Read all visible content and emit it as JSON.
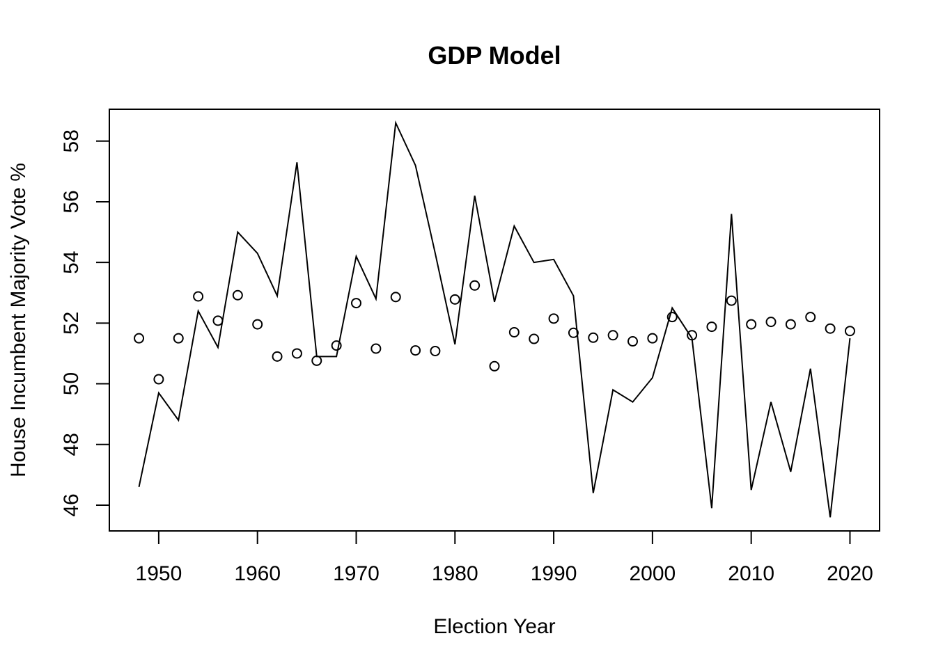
{
  "chart_data": {
    "type": "line",
    "title": "GDP Model",
    "xlabel": "Election Year",
    "ylabel": "House Incumbent Majority Vote %",
    "xlim": [
      1945,
      2023
    ],
    "ylim": [
      45.15,
      59.05
    ],
    "x_ticks": [
      "1950",
      "1960",
      "1970",
      "1980",
      "1990",
      "2000",
      "2010",
      "2020"
    ],
    "y_ticks": [
      "46",
      "48",
      "50",
      "52",
      "54",
      "56",
      "58"
    ],
    "grid": false,
    "legend": "none",
    "x": [
      1948,
      1950,
      1952,
      1954,
      1956,
      1958,
      1960,
      1962,
      1964,
      1966,
      1968,
      1970,
      1972,
      1974,
      1976,
      1978,
      1980,
      1982,
      1984,
      1986,
      1988,
      1990,
      1992,
      1994,
      1996,
      1998,
      2000,
      2002,
      2004,
      2006,
      2008,
      2010,
      2012,
      2014,
      2016,
      2018,
      2020
    ],
    "series": [
      {
        "style": "line",
        "values": [
          46.6,
          49.7,
          48.8,
          52.4,
          51.2,
          55.0,
          54.3,
          52.9,
          57.3,
          50.9,
          50.9,
          54.2,
          52.8,
          58.6,
          57.2,
          54.3,
          51.3,
          56.2,
          52.7,
          55.2,
          54.0,
          54.1,
          52.9,
          46.4,
          49.8,
          49.4,
          50.2,
          52.5,
          51.5,
          45.9,
          55.6,
          46.5,
          49.4,
          47.1,
          50.5,
          45.6,
          51.5
        ]
      },
      {
        "style": "points",
        "values": [
          51.5,
          50.15,
          51.5,
          52.88,
          52.08,
          52.92,
          51.96,
          50.9,
          51.0,
          50.76,
          51.26,
          52.66,
          51.16,
          52.86,
          51.1,
          51.08,
          52.78,
          53.24,
          50.58,
          51.7,
          51.48,
          52.15,
          51.68,
          51.52,
          51.6,
          51.4,
          51.5,
          52.2,
          51.6,
          51.88,
          52.74,
          51.96,
          52.04,
          51.96,
          52.2,
          51.82,
          51.74
        ]
      }
    ]
  }
}
